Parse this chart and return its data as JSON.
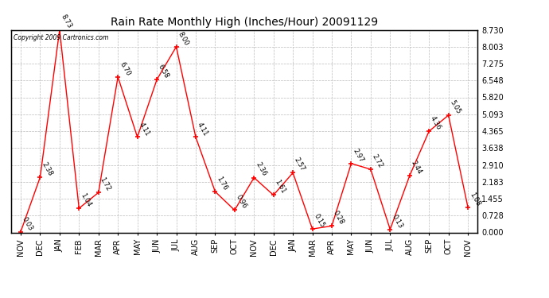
{
  "title": "Rain Rate Monthly High (Inches/Hour) 20091129",
  "copyright": "Copyright 2009 Cartronics.com",
  "x_labels": [
    "NOV",
    "DEC",
    "JAN",
    "FEB",
    "MAR",
    "APR",
    "MAY",
    "JUN",
    "JUL",
    "AUG",
    "SEP",
    "OCT",
    "NOV",
    "DEC",
    "JAN",
    "MAR",
    "APR",
    "MAY",
    "JUN",
    "JUL",
    "AUG",
    "SEP",
    "OCT",
    "NOV"
  ],
  "values": [
    0.03,
    2.38,
    8.73,
    1.04,
    1.72,
    6.7,
    4.11,
    6.58,
    8.0,
    4.11,
    1.76,
    0.96,
    2.36,
    1.61,
    2.57,
    0.15,
    0.28,
    2.97,
    2.72,
    0.13,
    2.44,
    4.36,
    5.05,
    1.08
  ],
  "y_ticks": [
    0.0,
    0.728,
    1.455,
    2.183,
    2.91,
    3.638,
    4.365,
    5.093,
    5.82,
    6.548,
    7.275,
    8.003,
    8.73
  ],
  "line_color": "#ff0000",
  "bg_color": "#ffffff",
  "grid_color": "#bbbbbb",
  "title_fontsize": 10,
  "tick_fontsize": 7,
  "annotation_fontsize": 6.0
}
